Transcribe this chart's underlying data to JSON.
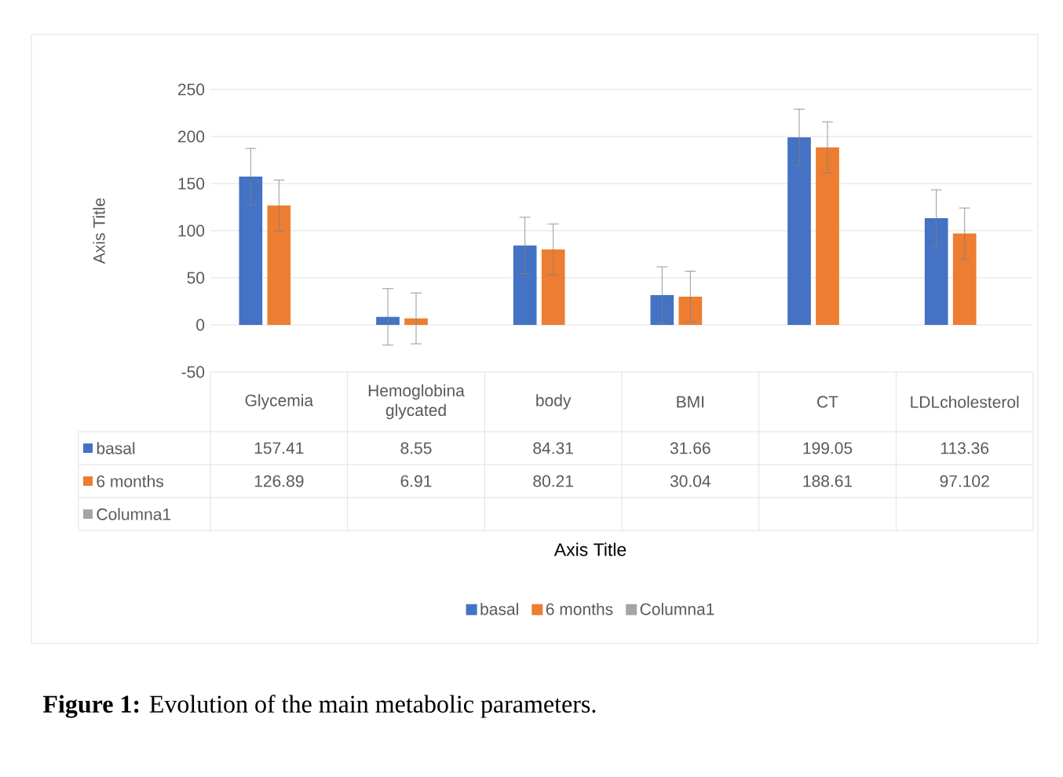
{
  "chart_data": {
    "type": "bar",
    "categories": [
      "Glycemia",
      "Hemoglobina glycated",
      "body",
      "BMI",
      "CT",
      "LDLcholesterol"
    ],
    "series": [
      {
        "name": "basal",
        "color": "#4472c4",
        "values": [
          157.41,
          8.55,
          84.31,
          31.66,
          199.05,
          113.36
        ],
        "errors": [
          30,
          30,
          30,
          30,
          30,
          30
        ]
      },
      {
        "name": "6 months",
        "color": "#ed7d31",
        "values": [
          126.89,
          6.91,
          80.21,
          30.04,
          188.61,
          97.102
        ],
        "errors": [
          27,
          27,
          27,
          27,
          27,
          27
        ]
      },
      {
        "name": "Columna1",
        "color": "#a5a5a5",
        "values": [
          null,
          null,
          null,
          null,
          null,
          null
        ]
      }
    ],
    "ylabel": "Axis Title",
    "ylim": [
      -50,
      250
    ],
    "yticks": [
      -50,
      0,
      50,
      100,
      150,
      200,
      250
    ],
    "grid": "y",
    "legend": "bottom",
    "data_labels": true,
    "annotations": [
      "Axis Title",
      "**Figure 1:** Evolution of the main metabolic parameters."
    ]
  }
}
